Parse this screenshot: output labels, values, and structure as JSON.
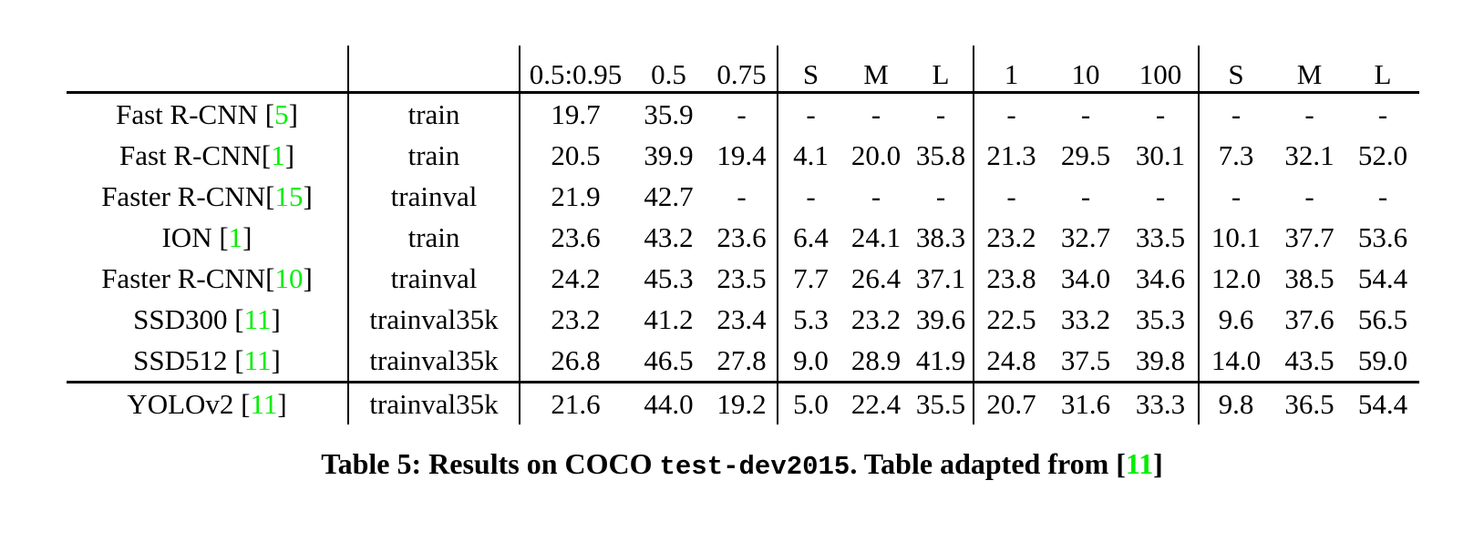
{
  "colors": {
    "citation_green": "#00ef00",
    "text": "#000000",
    "background": "#ffffff"
  },
  "table": {
    "cite_open": "[",
    "cite_close": "]",
    "header": {
      "group1": [
        "0.5:0.95",
        "0.5",
        "0.75"
      ],
      "group2": [
        "S",
        "M",
        "L"
      ],
      "group3": [
        "1",
        "10",
        "100"
      ],
      "group4": [
        "S",
        "M",
        "L"
      ]
    },
    "rows": [
      {
        "method": "Fast R-CNN ",
        "citation": "5",
        "trained_on": "train",
        "values": [
          "19.7",
          "35.9",
          "-",
          "-",
          "-",
          "-",
          "-",
          "-",
          "-",
          "-",
          "-",
          "-"
        ],
        "bold_values": false,
        "separated": false
      },
      {
        "method": "Fast R-CNN",
        "citation": "1",
        "trained_on": "train",
        "values": [
          "20.5",
          "39.9",
          "19.4",
          "4.1",
          "20.0",
          "35.8",
          "21.3",
          "29.5",
          "30.1",
          "7.3",
          "32.1",
          "52.0"
        ],
        "bold_values": false,
        "separated": false
      },
      {
        "method": "Faster R-CNN",
        "citation": "15",
        "trained_on": "trainval",
        "values": [
          "21.9",
          "42.7",
          "-",
          "-",
          "-",
          "-",
          "-",
          "-",
          "-",
          "-",
          "-",
          "-"
        ],
        "bold_values": false,
        "separated": false
      },
      {
        "method": "ION ",
        "citation": "1",
        "trained_on": "train",
        "values": [
          "23.6",
          "43.2",
          "23.6",
          "6.4",
          "24.1",
          "38.3",
          "23.2",
          "32.7",
          "33.5",
          "10.1",
          "37.7",
          "53.6"
        ],
        "bold_values": false,
        "separated": false
      },
      {
        "method": "Faster R-CNN",
        "citation": "10",
        "trained_on": "trainval",
        "values": [
          "24.2",
          "45.3",
          "23.5",
          "7.7",
          "26.4",
          "37.1",
          "23.8",
          "34.0",
          "34.6",
          "12.0",
          "38.5",
          "54.4"
        ],
        "bold_values": false,
        "separated": false
      },
      {
        "method": "SSD300 ",
        "citation": "11",
        "trained_on": "trainval35k",
        "values": [
          "23.2",
          "41.2",
          "23.4",
          "5.3",
          "23.2",
          "39.6",
          "22.5",
          "33.2",
          "35.3",
          "9.6",
          "37.6",
          "56.5"
        ],
        "bold_values": false,
        "separated": false
      },
      {
        "method": "SSD512 ",
        "citation": "11",
        "trained_on": "trainval35k",
        "values": [
          "26.8",
          "46.5",
          "27.8",
          "9.0",
          "28.9",
          "41.9",
          "24.8",
          "37.5",
          "39.8",
          "14.0",
          "43.5",
          "59.0"
        ],
        "bold_values": true,
        "separated": false
      },
      {
        "method": "YOLOv2 ",
        "citation": "11",
        "trained_on": "trainval35k",
        "values": [
          "21.6",
          "44.0",
          "19.2",
          "5.0",
          "22.4",
          "35.5",
          "20.7",
          "31.6",
          "33.3",
          "9.8",
          "36.5",
          "54.4"
        ],
        "bold_values": false,
        "separated": true
      }
    ]
  },
  "caption": {
    "prefix": "Table 5: Results on COCO ",
    "code": "test-dev2015",
    "middle": ". Table adapted from [",
    "citation": "11",
    "suffix": "]"
  }
}
